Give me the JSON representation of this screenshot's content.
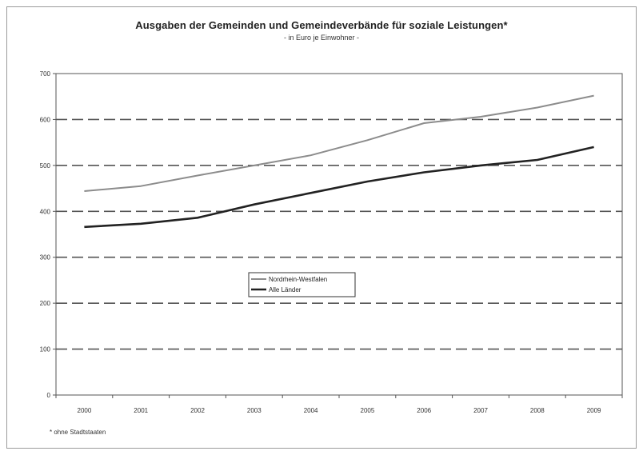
{
  "chart_data": {
    "type": "line",
    "title": "Ausgaben der Gemeinden und Gemeindeverbände für soziale Leistungen*",
    "subtitle": "- in Euro je Einwohner -",
    "footnote": "* ohne Stadtstaaten",
    "categories": [
      "2000",
      "2001",
      "2002",
      "2003",
      "2004",
      "2005",
      "2006",
      "2007",
      "2008",
      "2009"
    ],
    "series": [
      {
        "name": "Nordrhein-Westfalen",
        "values": [
          444,
          455,
          478,
          500,
          522,
          555,
          592,
          606,
          626,
          652
        ],
        "color": "#8c8c8c"
      },
      {
        "name": "Alle Länder",
        "values": [
          366,
          373,
          386,
          415,
          440,
          465,
          485,
          500,
          512,
          540
        ],
        "color": "#222222"
      }
    ],
    "ylim": [
      0,
      700
    ],
    "yticks": [
      0,
      100,
      200,
      300,
      400,
      500,
      600,
      700
    ],
    "grid": "horizontal dashed",
    "legend": "center-left"
  }
}
